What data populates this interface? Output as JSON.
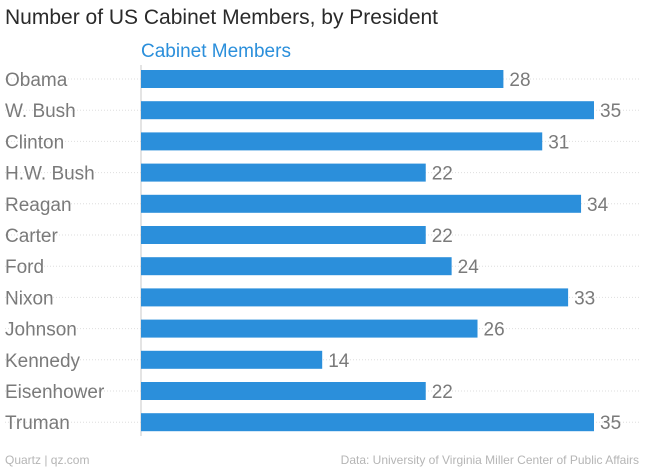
{
  "footer": {
    "source_left": "Quartz | qz.com",
    "source_right": "Data: University of Virginia Miller Center of Public Affairs"
  },
  "colors": {
    "bar": "#2b8fdb",
    "series_label": "#2b8fdb"
  },
  "chart_data": {
    "type": "bar",
    "orientation": "horizontal",
    "title": "Number of US Cabinet Members, by President",
    "series_name": "Cabinet Members",
    "categories": [
      "Obama",
      "W. Bush",
      "Clinton",
      "H.W. Bush",
      "Reagan",
      "Carter",
      "Ford",
      "Nixon",
      "Johnson",
      "Kennedy",
      "Eisenhower",
      "Truman"
    ],
    "values": [
      28,
      35,
      31,
      22,
      34,
      22,
      24,
      33,
      26,
      14,
      22,
      35
    ],
    "xlim": [
      0,
      35
    ],
    "grid": true
  }
}
